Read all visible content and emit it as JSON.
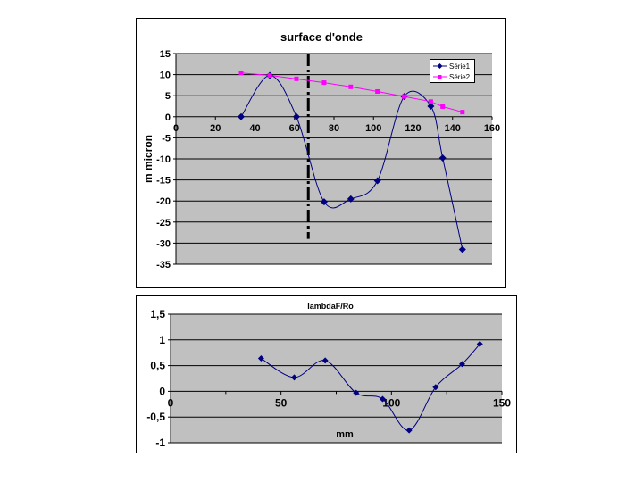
{
  "chart_data": [
    {
      "type": "line",
      "title": "surface d'onde",
      "xlabel": "",
      "ylabel": "m micron",
      "xlim": [
        0,
        160
      ],
      "ylim": [
        -35,
        15
      ],
      "x_ticks": [
        0,
        20,
        40,
        60,
        80,
        100,
        120,
        140,
        160
      ],
      "y_ticks": [
        15,
        10,
        5,
        0,
        -5,
        -10,
        -15,
        -20,
        -25,
        -30,
        -35
      ],
      "x_tick_labels": [
        "0",
        "20",
        "40",
        "60",
        "80",
        "100",
        "120",
        "140",
        "160"
      ],
      "y_tick_labels": [
        "15",
        "10",
        "5",
        "0",
        "-5",
        "-10",
        "-15",
        "-20",
        "-25",
        "-30",
        "-35"
      ],
      "grid": "horizontal",
      "legend": "top-right",
      "reference_line": {
        "x": 67,
        "y_from": 15,
        "y_to": -29,
        "style": "dash-dot",
        "color": "#000000"
      },
      "series": [
        {
          "name": "Série1",
          "color": "#000080",
          "marker": "diamond",
          "smooth": true,
          "x": [
            33,
            47.5,
            61,
            75,
            88.5,
            102,
            115.5,
            129,
            135,
            145
          ],
          "y": [
            0,
            9.8,
            0,
            -20.2,
            -19.5,
            -15.2,
            4.8,
            2.5,
            -9.8,
            -31.5
          ]
        },
        {
          "name": "Série2",
          "color": "#ff00ff",
          "marker": "square",
          "smooth": false,
          "x": [
            33,
            47.5,
            61,
            75,
            88.5,
            102,
            115.5,
            129,
            135,
            145
          ],
          "y": [
            10.4,
            9.8,
            9.0,
            8.1,
            7.1,
            6.0,
            4.8,
            3.6,
            2.4,
            1.1
          ]
        }
      ]
    },
    {
      "type": "line",
      "title": "lambdaF/Ro",
      "xlabel": "mm",
      "ylabel": "",
      "xlim": [
        0,
        150
      ],
      "ylim": [
        -1,
        1.5
      ],
      "x_ticks": [
        0,
        50,
        100,
        150
      ],
      "y_ticks": [
        1.5,
        1,
        0.5,
        0,
        -0.5,
        -1
      ],
      "x_tick_labels": [
        "0",
        "50",
        "100",
        "150"
      ],
      "y_tick_labels": [
        "1,5",
        "1",
        "0,5",
        "0",
        "-0,5",
        "-1"
      ],
      "grid": "horizontal",
      "legend": "none",
      "series": [
        {
          "color": "#000080",
          "marker": "diamond",
          "smooth": true,
          "x": [
            41,
            56,
            70,
            84,
            96,
            108,
            120,
            132,
            140
          ],
          "y": [
            0.64,
            0.27,
            0.6,
            -0.03,
            -0.15,
            -0.76,
            0.08,
            0.53,
            0.92
          ]
        }
      ]
    }
  ]
}
